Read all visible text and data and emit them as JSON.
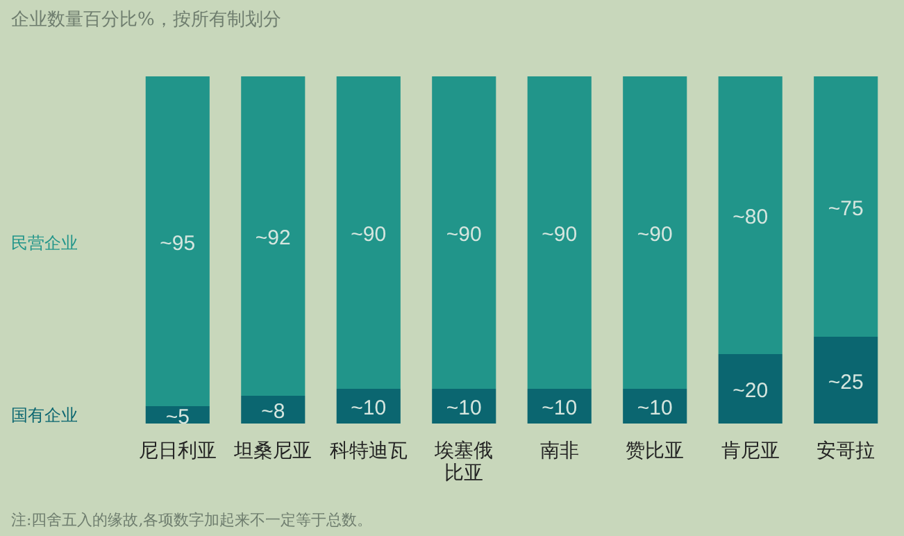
{
  "chart_data": {
    "type": "bar",
    "title": "企业数量百分比%，按所有制划分",
    "stacked": true,
    "categories": [
      "尼日利亚",
      "坦桑尼亚",
      "科特迪瓦",
      "埃塞俄比亚",
      "南非",
      "赞比亚",
      "肯尼亚",
      "安哥拉"
    ],
    "series": [
      {
        "name": "国有企业",
        "color": "#0b6670",
        "values": [
          5,
          8,
          10,
          10,
          10,
          10,
          20,
          25
        ],
        "value_labels": [
          "~5",
          "~8",
          "~10",
          "~10",
          "~10",
          "~10",
          "~20",
          "~25"
        ]
      },
      {
        "name": "民营企业",
        "color": "#21958a",
        "values": [
          95,
          92,
          90,
          90,
          90,
          90,
          80,
          75
        ],
        "value_labels": [
          "~95",
          "~92",
          "~90",
          "~90",
          "~90",
          "~90",
          "~80",
          "~75"
        ]
      }
    ],
    "ylim": [
      0,
      100
    ],
    "tick_labels": "x",
    "annotations": [
      "注:四舍五入的缘故,各项数字加起来不一定等于总数。"
    ]
  }
}
